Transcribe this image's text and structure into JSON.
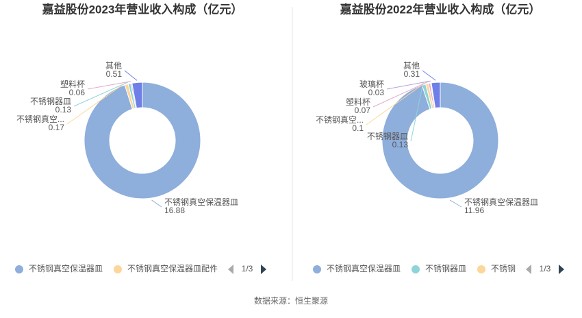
{
  "source": "数据来源：恒生聚源",
  "chart_data": [
    {
      "type": "donut",
      "title": "嘉益股份2023年营业收入构成（亿元）",
      "categories": [
        "不锈钢真空保温器皿",
        "不锈钢真空...",
        "不锈钢器皿",
        "塑料杯",
        "其他"
      ],
      "values": [
        16.88,
        0.17,
        0.13,
        0.06,
        0.51
      ],
      "colors": [
        "#8eaedb",
        "#fcd69a",
        "#8ed4d8",
        "#e6a9cd",
        "#6e7fe8"
      ],
      "legend": [
        "不锈钢真空保温器皿",
        "不锈钢真空保温器皿配件"
      ],
      "legend_page": "1/3"
    },
    {
      "type": "donut",
      "title": "嘉益股份2022年营业收入构成（亿元）",
      "categories": [
        "不锈钢真空保温器皿",
        "不锈钢器皿",
        "不锈钢真空...",
        "塑料杯",
        "玻璃杯",
        "其他"
      ],
      "values": [
        11.96,
        0.13,
        0.1,
        0.07,
        0.03,
        0.31
      ],
      "colors": [
        "#8eaedb",
        "#8ed4d8",
        "#fcd69a",
        "#e6a9cd",
        "#b9a0e0",
        "#6e7fe8"
      ],
      "legend": [
        "不锈钢真空保温器皿",
        "不锈钢器皿",
        "不锈钢"
      ],
      "legend_page": "1/3"
    }
  ]
}
